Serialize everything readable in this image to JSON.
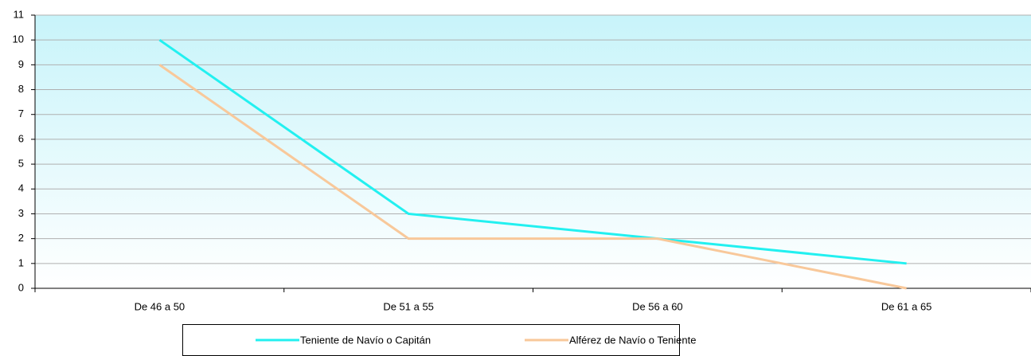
{
  "chart_data": {
    "type": "line",
    "categories": [
      "De 46 a 50",
      "De 51 a 55",
      "De 56 a 60",
      "De 61 a 65"
    ],
    "series": [
      {
        "name": "Teniente de Navío o Capitán",
        "color": "#22f0f0",
        "values": [
          10,
          3,
          2,
          1
        ]
      },
      {
        "name": "Alférez de Navío o Teniente",
        "color": "#f8c89a",
        "values": [
          9,
          2,
          2,
          0
        ]
      }
    ],
    "ylim": [
      0,
      11
    ],
    "yticks": [
      0,
      1,
      2,
      3,
      4,
      5,
      6,
      7,
      8,
      9,
      10,
      11
    ],
    "grid": true
  }
}
